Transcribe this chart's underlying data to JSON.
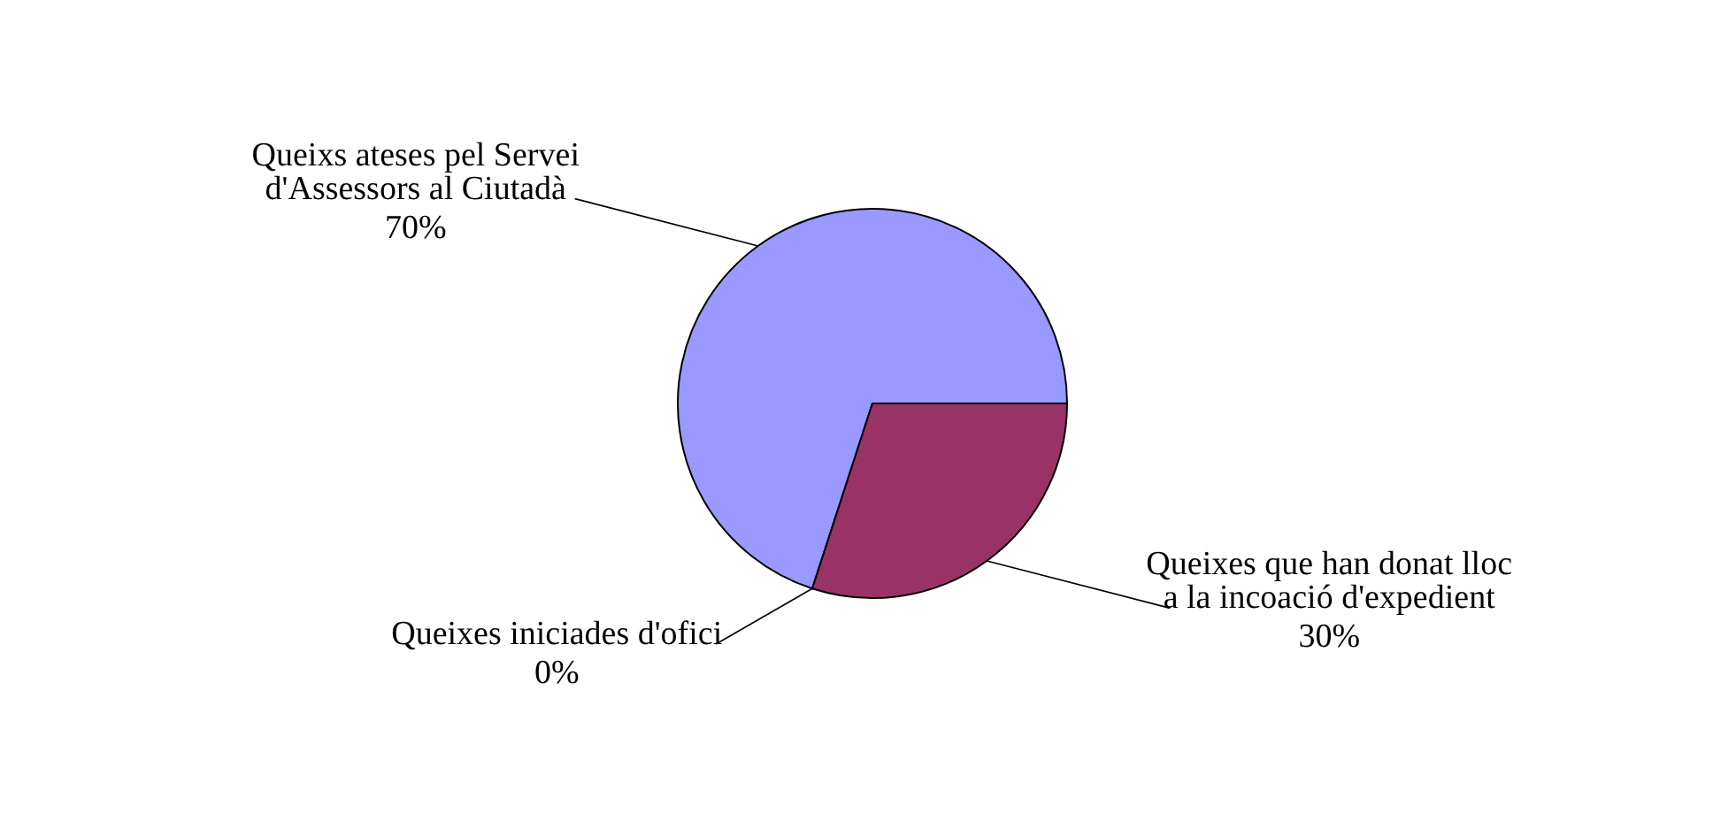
{
  "chart_data": {
    "type": "pie",
    "categories": [
      "Queixs ateses pel Servei d'Assessors al Ciutadà",
      "Queixes iniciades d'ofici",
      "Queixes que han donat lloc a la incoació d'expedient"
    ],
    "values": [
      70,
      0,
      30
    ],
    "colors": [
      "#9999ff",
      "#ffffcc",
      "#993366"
    ],
    "value_labels": [
      "70%",
      "0%",
      "30%"
    ]
  }
}
